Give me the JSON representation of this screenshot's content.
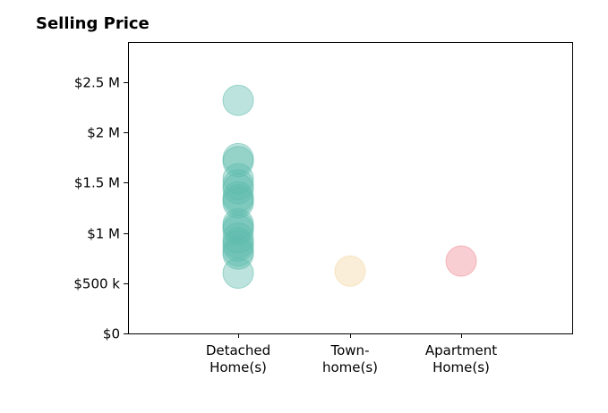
{
  "chart_data": {
    "type": "scatter",
    "title": "Selling Price",
    "xlabel": "",
    "ylabel": "",
    "categories": [
      [
        "Detached",
        "Home(s)"
      ],
      [
        "Town-",
        "home(s)"
      ],
      [
        "Apartment",
        "Home(s)"
      ]
    ],
    "category_colors": [
      "#5fbcad",
      "#f3d7a1",
      "#ef8a97"
    ],
    "yticks": [
      {
        "value": 0,
        "label": "$0"
      },
      {
        "value": 500000,
        "label": "$500 k"
      },
      {
        "value": 1000000,
        "label": "$1 M"
      },
      {
        "value": 1500000,
        "label": "$1.5 M"
      },
      {
        "value": 2000000,
        "label": "$2 M"
      },
      {
        "value": 2500000,
        "label": "$2.5 M"
      }
    ],
    "ylim": [
      0,
      2900000
    ],
    "series": [
      {
        "category": 0,
        "values": [
          2320000,
          1740000,
          1710000,
          1540000,
          1480000,
          1440000,
          1360000,
          1330000,
          1300000,
          1090000,
          1060000,
          1030000,
          950000,
          900000,
          870000,
          820000,
          790000,
          600000
        ]
      },
      {
        "category": 1,
        "values": [
          620000
        ]
      },
      {
        "category": 2,
        "values": [
          720000
        ]
      }
    ],
    "grid": false,
    "legend": "none"
  }
}
